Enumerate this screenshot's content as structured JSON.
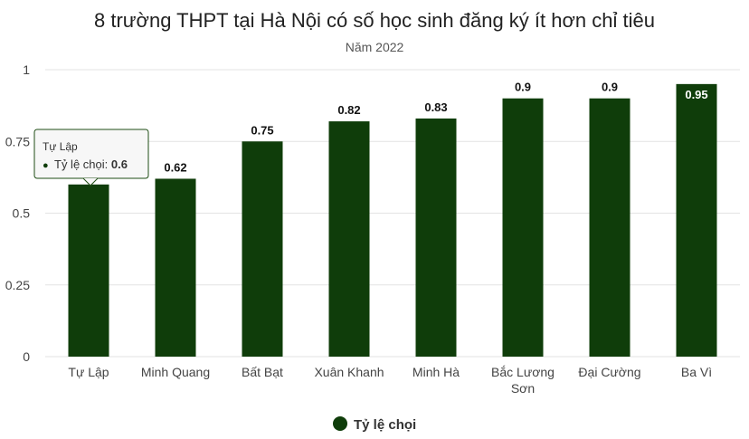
{
  "chart_data": {
    "type": "bar",
    "title": "8 trường THPT tại Hà Nội có số học sinh đăng ký ít hơn chỉ tiêu",
    "subtitle": "Năm 2022",
    "categories": [
      "Tự Lập",
      "Minh Quang",
      "Bất Bạt",
      "Xuân Khanh",
      "Minh Hà",
      "Bắc Lương\nSơn",
      "Đại Cường",
      "Ba Vì"
    ],
    "series": [
      {
        "name": "Tỷ lệ chọi",
        "values": [
          0.6,
          0.62,
          0.75,
          0.82,
          0.83,
          0.9,
          0.9,
          0.95
        ],
        "color": "#0f3d0a"
      }
    ],
    "yticks": [
      0,
      0.25,
      0.5,
      0.75,
      1
    ],
    "ylim": [
      0,
      1
    ],
    "grid": true,
    "legend": "bottom-center",
    "tooltip": {
      "title": "Tự Lập",
      "label": "Tỷ lệ chọi",
      "value": "0.6"
    }
  }
}
